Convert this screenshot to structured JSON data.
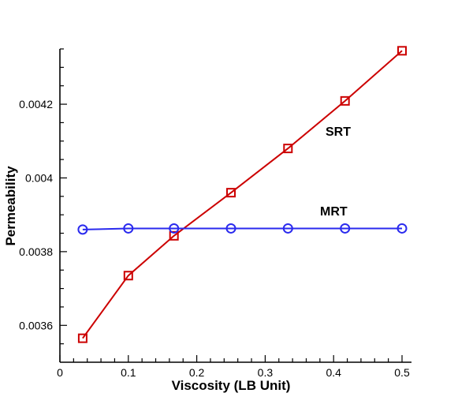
{
  "chart_data": {
    "type": "line",
    "title": "",
    "xlabel": "Viscosity (LB Unit)",
    "ylabel": "Permeability",
    "xlim": [
      0,
      0.5
    ],
    "ylim": [
      0.0035,
      0.00435
    ],
    "x_ticks": [
      "0",
      "0.1",
      "0.2",
      "0.3",
      "0.4",
      "0.5"
    ],
    "y_ticks": [
      "0.0036",
      "0.0038",
      "0.004",
      "0.0042"
    ],
    "grid": false,
    "legend": "none",
    "series": [
      {
        "name": "SRT",
        "color": "#cc0000",
        "marker": "square",
        "x": [
          0.0333,
          0.1,
          0.1667,
          0.25,
          0.3333,
          0.4167,
          0.5
        ],
        "values": [
          0.003565,
          0.003735,
          0.003843,
          0.00396,
          0.00408,
          0.004209,
          0.004345
        ]
      },
      {
        "name": "MRT",
        "color": "#2a2aee",
        "marker": "circle",
        "x": [
          0.0333,
          0.1,
          0.1667,
          0.25,
          0.3333,
          0.4167,
          0.5
        ],
        "values": [
          0.00386,
          0.003863,
          0.003863,
          0.003863,
          0.003863,
          0.003863,
          0.003863
        ]
      }
    ]
  }
}
